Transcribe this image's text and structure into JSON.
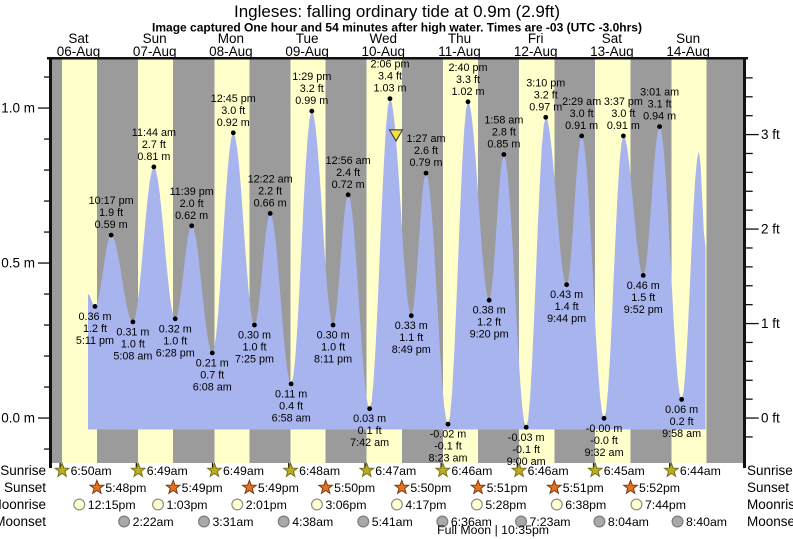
{
  "chart_data": {
    "type": "area",
    "title": "Ingleses: falling  ordinary tide at 0.9m (2.9ft)",
    "subtitle": "Image captured One hour and 54 minutes after high water. Times are -03 (UTC -3.0hrs)",
    "colors": {
      "day_stripe": "#ffffcc",
      "night_stripe": "#9b9b9b",
      "tide_fill": "#a8b4ee",
      "day_label": "#ee2222",
      "axis": "#111111",
      "marker_fill": "#f2e23b",
      "sunrise_star": "#bcae22",
      "sunset_star": "#e4731f",
      "moonrise_fill": "#ffffd0",
      "moonset_fill": "#a9a9a9"
    },
    "y_axis_left": {
      "unit": "m",
      "tick_values": [
        1.0,
        0.5,
        0.0
      ],
      "tick_labels": [
        "1.0 m",
        "0.5 m",
        "0.0 m"
      ]
    },
    "y_axis_right": {
      "unit": "ft",
      "tick_values": [
        3,
        2,
        1,
        0
      ],
      "tick_labels": [
        "3 ft",
        "2 ft",
        "1 ft",
        "0 ft"
      ]
    },
    "days": [
      {
        "dow": "Sat",
        "date": "06-Aug"
      },
      {
        "dow": "Sun",
        "date": "07-Aug"
      },
      {
        "dow": "Mon",
        "date": "08-Aug"
      },
      {
        "dow": "Tue",
        "date": "09-Aug"
      },
      {
        "dow": "Wed",
        "date": "10-Aug"
      },
      {
        "dow": "Thu",
        "date": "11-Aug"
      },
      {
        "dow": "Fri",
        "date": "12-Aug"
      },
      {
        "dow": "Sat",
        "date": "13-Aug"
      },
      {
        "dow": "Sun",
        "date": "14-Aug"
      }
    ],
    "tide_events": [
      {
        "day": 0,
        "time": "3:00 pm",
        "type": "edge",
        "m": 0.4
      },
      {
        "day": 0,
        "time": "5:11 pm",
        "type": "low",
        "m": 0.36,
        "m_label": "0.36 m",
        "ft_label": "1.2 ft",
        "time_label": "5:11 pm"
      },
      {
        "day": 0,
        "time": "10:17 pm",
        "type": "high",
        "m": 0.59,
        "m_label": "0.59 m",
        "ft_label": "1.9 ft",
        "time_label": "10:17 pm"
      },
      {
        "day": 1,
        "time": "5:08 am",
        "type": "low",
        "m": 0.31,
        "m_label": "0.31 m",
        "ft_label": "1.0 ft",
        "time_label": "5:08 am"
      },
      {
        "day": 1,
        "time": "11:44 am",
        "type": "high",
        "m": 0.81,
        "m_label": "0.81 m",
        "ft_label": "2.7 ft",
        "time_label": "11:44 am"
      },
      {
        "day": 1,
        "time": "6:28 pm",
        "type": "low",
        "m": 0.32,
        "m_label": "0.32 m",
        "ft_label": "1.0 ft",
        "time_label": "6:28 pm"
      },
      {
        "day": 1,
        "time": "11:39 pm",
        "type": "high",
        "m": 0.62,
        "m_label": "0.62 m",
        "ft_label": "2.0 ft",
        "time_label": "11:39 pm"
      },
      {
        "day": 2,
        "time": "6:08 am",
        "type": "low",
        "m": 0.21,
        "m_label": "0.21 m",
        "ft_label": "0.7 ft",
        "time_label": "6:08 am"
      },
      {
        "day": 2,
        "time": "12:45 pm",
        "type": "high",
        "m": 0.92,
        "m_label": "0.92 m",
        "ft_label": "3.0 ft",
        "time_label": "12:45 pm"
      },
      {
        "day": 2,
        "time": "7:25 pm",
        "type": "low",
        "m": 0.3,
        "m_label": "0.30 m",
        "ft_label": "1.0 ft",
        "time_label": "7:25 pm"
      },
      {
        "day": 3,
        "time": "12:22 am",
        "type": "high",
        "m": 0.66,
        "m_label": "0.66 m",
        "ft_label": "2.2 ft",
        "time_label": "12:22 am"
      },
      {
        "day": 3,
        "time": "6:58 am",
        "type": "low",
        "m": 0.11,
        "m_label": "0.11 m",
        "ft_label": "0.4 ft",
        "time_label": "6:58 am"
      },
      {
        "day": 3,
        "time": "1:29 pm",
        "type": "high",
        "m": 0.99,
        "m_label": "0.99 m",
        "ft_label": "3.2 ft",
        "time_label": "1:29 pm"
      },
      {
        "day": 3,
        "time": "8:11 pm",
        "type": "low",
        "m": 0.3,
        "m_label": "0.30 m",
        "ft_label": "1.0 ft",
        "time_label": "8:11 pm"
      },
      {
        "day": 4,
        "time": "12:56 am",
        "type": "high",
        "m": 0.72,
        "m_label": "0.72 m",
        "ft_label": "2.4 ft",
        "time_label": "12:56 am"
      },
      {
        "day": 4,
        "time": "7:42 am",
        "type": "low",
        "m": 0.03,
        "m_label": "0.03 m",
        "ft_label": "0.1 ft",
        "time_label": "7:42 am"
      },
      {
        "day": 4,
        "time": "2:06 pm",
        "type": "high",
        "m": 1.03,
        "m_label": "1.03 m",
        "ft_label": "3.4 ft",
        "time_label": "2:06 pm"
      },
      {
        "day": 4,
        "time": "8:49 pm",
        "type": "low",
        "m": 0.33,
        "m_label": "0.33 m",
        "ft_label": "1.1 ft",
        "time_label": "8:49 pm"
      },
      {
        "day": 5,
        "time": "1:27 am",
        "type": "high",
        "m": 0.79,
        "m_label": "0.79 m",
        "ft_label": "2.6 ft",
        "time_label": "1:27 am"
      },
      {
        "day": 5,
        "time": "8:23 am",
        "type": "low",
        "m": -0.02,
        "m_label": "-0.02 m",
        "ft_label": "-0.1 ft",
        "time_label": "8:23 am"
      },
      {
        "day": 5,
        "time": "2:40 pm",
        "type": "high",
        "m": 1.02,
        "m_label": "1.02 m",
        "ft_label": "3.3 ft",
        "time_label": "2:40 pm"
      },
      {
        "day": 5,
        "time": "9:20 pm",
        "type": "low",
        "m": 0.38,
        "m_label": "0.38 m",
        "ft_label": "1.2 ft",
        "time_label": "9:20 pm"
      },
      {
        "day": 6,
        "time": "1:58 am",
        "type": "high",
        "m": 0.85,
        "m_label": "0.85 m",
        "ft_label": "2.8 ft",
        "time_label": "1:58 am"
      },
      {
        "day": 6,
        "time": "9:00 am",
        "type": "low",
        "m": -0.03,
        "m_label": "-0.03 m",
        "ft_label": "-0.1 ft",
        "time_label": "9:00 am"
      },
      {
        "day": 6,
        "time": "3:10 pm",
        "type": "high",
        "m": 0.97,
        "m_label": "0.97 m",
        "ft_label": "3.2 ft",
        "time_label": "3:10 pm"
      },
      {
        "day": 6,
        "time": "9:44 pm",
        "type": "low",
        "m": 0.43,
        "m_label": "0.43 m",
        "ft_label": "1.4 ft",
        "time_label": "9:44 pm"
      },
      {
        "day": 7,
        "time": "2:29 am",
        "type": "high",
        "m": 0.91,
        "m_label": "0.91 m",
        "ft_label": "3.0 ft",
        "time_label": "2:29 am"
      },
      {
        "day": 7,
        "time": "9:32 am",
        "type": "low",
        "m": -0.001,
        "m_label": "-0.00 m",
        "ft_label": "-0.0 ft",
        "time_label": "9:32 am"
      },
      {
        "day": 7,
        "time": "3:37 pm",
        "type": "high",
        "m": 0.91,
        "m_label": "0.91 m",
        "ft_label": "3.0 ft",
        "time_label": "3:37 pm"
      },
      {
        "day": 7,
        "time": "9:52 pm",
        "type": "low",
        "m": 0.46,
        "m_label": "0.46 m",
        "ft_label": "1.5 ft",
        "time_label": "9:52 pm"
      },
      {
        "day": 8,
        "time": "3:01 am",
        "type": "high",
        "m": 0.94,
        "m_label": "0.94 m",
        "ft_label": "3.1 ft",
        "time_label": "3:01 am"
      },
      {
        "day": 8,
        "time": "9:58 am",
        "type": "low",
        "m": 0.06,
        "m_label": "0.06 m",
        "ft_label": "0.2 ft",
        "time_label": "9:58 am"
      },
      {
        "day": 8,
        "time": "3:26 pm",
        "type": "high",
        "m": 0.86
      },
      {
        "day": 8,
        "time": "5:30 pm",
        "type": "edge",
        "m": 0.55
      }
    ],
    "current_marker": {
      "day": 4,
      "time": "4:00 pm",
      "m": 0.91
    }
  },
  "astro": {
    "rows": [
      {
        "label": "Sunrise",
        "icon": "sunrise-star",
        "entries": [
          {
            "day": 0,
            "time": "6:50am"
          },
          {
            "day": 1,
            "time": "6:49am"
          },
          {
            "day": 2,
            "time": "6:49am"
          },
          {
            "day": 3,
            "time": "6:48am"
          },
          {
            "day": 4,
            "time": "6:47am"
          },
          {
            "day": 5,
            "time": "6:46am"
          },
          {
            "day": 6,
            "time": "6:46am"
          },
          {
            "day": 7,
            "time": "6:45am"
          },
          {
            "day": 8,
            "time": "6:44am"
          }
        ]
      },
      {
        "label": "Sunset",
        "icon": "sunset-star",
        "entries": [
          {
            "day": 0,
            "time": "5:48pm"
          },
          {
            "day": 1,
            "time": "5:49pm"
          },
          {
            "day": 2,
            "time": "5:49pm"
          },
          {
            "day": 3,
            "time": "5:50pm"
          },
          {
            "day": 4,
            "time": "5:50pm"
          },
          {
            "day": 5,
            "time": "5:51pm"
          },
          {
            "day": 6,
            "time": "5:51pm"
          },
          {
            "day": 7,
            "time": "5:52pm"
          }
        ]
      },
      {
        "label": "Moonrise",
        "icon": "moonrise-circle",
        "entries": [
          {
            "day": 0,
            "time": "12:15pm"
          },
          {
            "day": 1,
            "time": "1:03pm"
          },
          {
            "day": 2,
            "time": "2:01pm"
          },
          {
            "day": 3,
            "time": "3:06pm"
          },
          {
            "day": 4,
            "time": "4:17pm"
          },
          {
            "day": 5,
            "time": "5:28pm"
          },
          {
            "day": 6,
            "time": "6:38pm"
          },
          {
            "day": 7,
            "time": "7:44pm"
          }
        ]
      },
      {
        "label": "Moonset",
        "icon": "moonset-circle",
        "entries": [
          {
            "day": 1,
            "time": "2:22am"
          },
          {
            "day": 2,
            "time": "3:31am"
          },
          {
            "day": 3,
            "time": "4:38am"
          },
          {
            "day": 4,
            "time": "5:41am"
          },
          {
            "day": 5,
            "time": "6:36am"
          },
          {
            "day": 6,
            "time": "7:23am"
          },
          {
            "day": 7,
            "time": "8:04am"
          },
          {
            "day": 8,
            "time": "8:40am"
          }
        ]
      }
    ],
    "footnote": {
      "label": "Full Moon",
      "separator": "|",
      "time": "10:35pm",
      "day": 5
    }
  }
}
